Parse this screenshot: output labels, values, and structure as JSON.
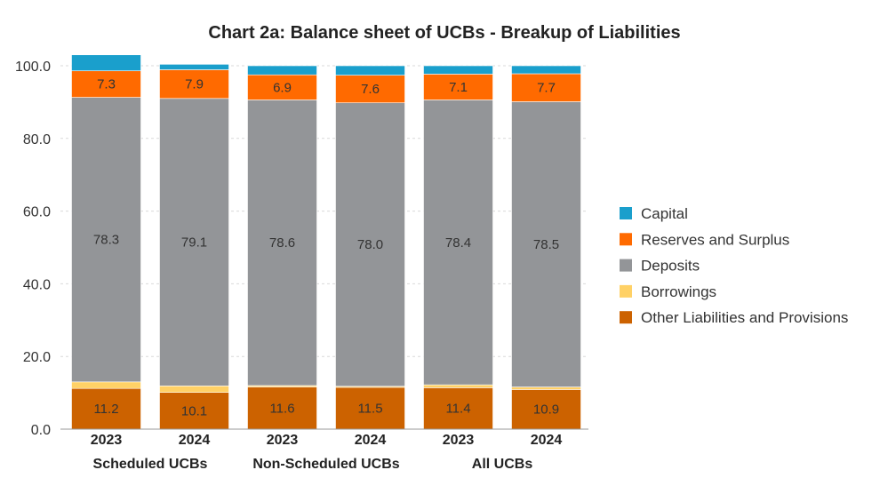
{
  "chart_data": {
    "type": "bar",
    "stacked": true,
    "title": "Chart 2a: Balance sheet of UCBs - Breakup of Liabilities",
    "xlabel": "",
    "ylabel": "",
    "ylim": [
      0,
      100
    ],
    "yticks": [
      "0.0",
      "20.0",
      "40.0",
      "60.0",
      "80.0",
      "100.0"
    ],
    "grid": true,
    "legend_position": "right",
    "groups": [
      {
        "label": "Scheduled UCBs",
        "categories": [
          "2023",
          "2024"
        ]
      },
      {
        "label": "Non-Scheduled UCBs",
        "categories": [
          "2023",
          "2024"
        ]
      },
      {
        "label": "All UCBs",
        "categories": [
          "2023",
          "2024"
        ]
      }
    ],
    "categories": [
      "2023",
      "2024",
      "2023",
      "2024",
      "2023",
      "2024"
    ],
    "series": [
      {
        "name": "Other Liabilities and Provisions",
        "color": "#cc6200",
        "values": [
          11.2,
          10.1,
          11.6,
          11.5,
          11.4,
          10.9
        ],
        "labels": [
          "11.2",
          "10.1",
          "11.6",
          "11.5",
          "11.4",
          "10.9"
        ]
      },
      {
        "name": "Borrowings",
        "color": "#ffd166",
        "values": [
          1.8,
          1.8,
          0.4,
          0.3,
          0.8,
          0.7
        ],
        "labels": []
      },
      {
        "name": "Deposits",
        "color": "#939598",
        "values": [
          78.3,
          79.1,
          78.6,
          78.0,
          78.4,
          78.5
        ],
        "labels": [
          "78.3",
          "79.1",
          "78.6",
          "78.0",
          "78.4",
          "78.5"
        ]
      },
      {
        "name": "Reserves and Surplus",
        "color": "#ff6a00",
        "values": [
          7.3,
          7.9,
          6.9,
          7.6,
          7.1,
          7.7
        ],
        "labels": [
          "7.3",
          "7.9",
          "6.9",
          "7.6",
          "7.1",
          "7.7"
        ]
      },
      {
        "name": "Capital",
        "color": "#1a9fcc",
        "values": [
          4.4,
          1.5,
          2.5,
          2.6,
          2.3,
          2.2
        ],
        "labels": []
      }
    ],
    "legend_order": [
      "Capital",
      "Reserves and Surplus",
      "Deposits",
      "Borrowings",
      "Other Liabilities and Provisions"
    ]
  }
}
